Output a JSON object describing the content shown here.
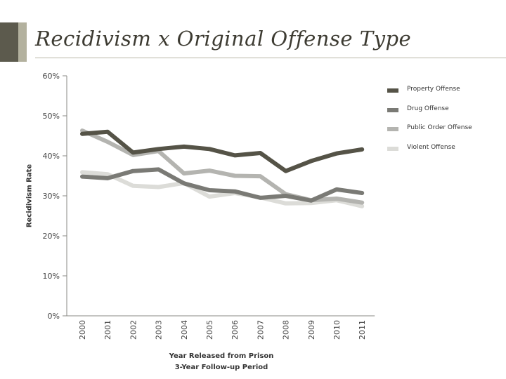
{
  "header": {
    "title": "Recidivism x Original Offense Type"
  },
  "chart_data": {
    "type": "line",
    "title": "Recidivism x Original Offense Type",
    "xlabel": "Year Released from Prison",
    "xlabel_sub": "3-Year Follow-up Period",
    "ylabel": "Recidivism Rate",
    "categories": [
      "2000",
      "2001",
      "2002",
      "2003",
      "2004",
      "2005",
      "2006",
      "2007",
      "2008",
      "2009",
      "2010",
      "2011"
    ],
    "y_ticks": [
      "0%",
      "10%",
      "20%",
      "30%",
      "40%",
      "50%",
      "60%"
    ],
    "ylim": [
      0,
      60
    ],
    "grid": false,
    "legend_position": "right",
    "series": [
      {
        "name": "Property Offense",
        "color": "#555347",
        "values": [
          45.5,
          46.0,
          40.8,
          41.7,
          42.3,
          41.7,
          40.1,
          40.7,
          36.2,
          38.7,
          40.6,
          41.6
        ]
      },
      {
        "name": "Drug Offense",
        "color": "#7a7a75",
        "values": [
          34.8,
          34.4,
          36.2,
          36.6,
          33.1,
          31.4,
          31.1,
          29.5,
          30.0,
          28.8,
          31.6,
          30.7
        ]
      },
      {
        "name": "Public Order Offense",
        "color": "#b4b4b0",
        "values": [
          46.3,
          43.5,
          40.2,
          41.2,
          35.6,
          36.3,
          35.0,
          34.9,
          30.4,
          28.9,
          29.3,
          28.3
        ]
      },
      {
        "name": "Violent Offense",
        "color": "#dcdcd8",
        "values": [
          35.9,
          35.4,
          32.5,
          32.2,
          33.2,
          29.8,
          30.7,
          29.6,
          28.1,
          28.2,
          28.9,
          27.4
        ]
      }
    ]
  }
}
